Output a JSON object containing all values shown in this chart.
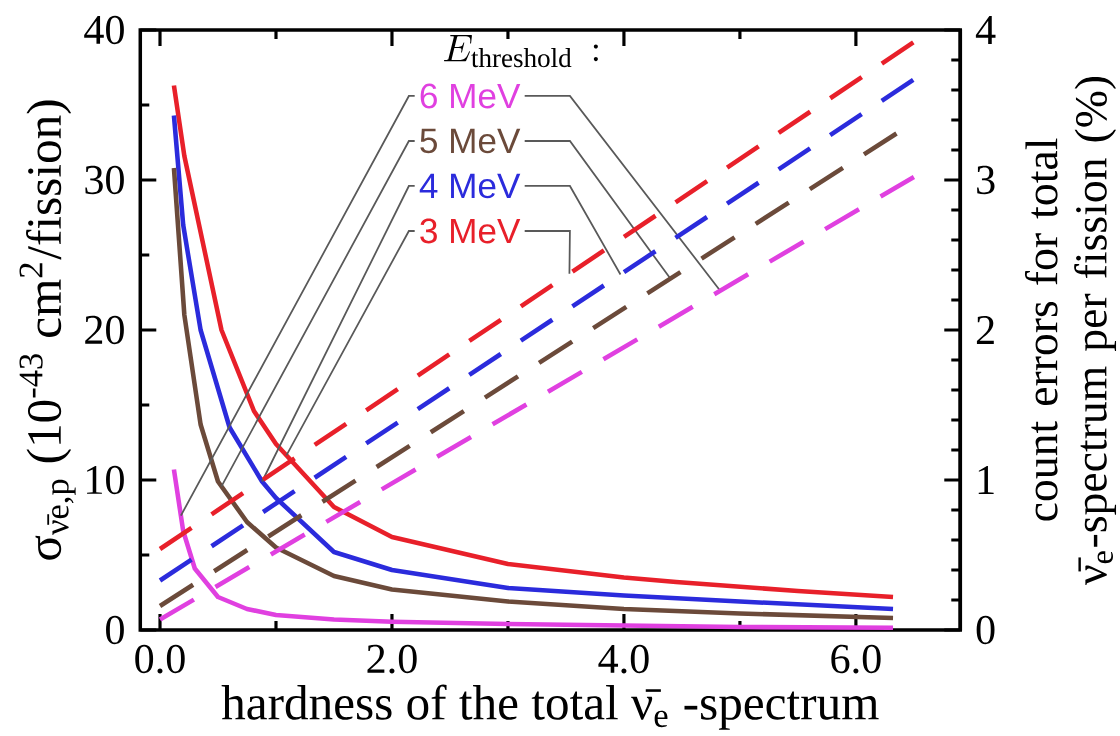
{
  "chart_data": {
    "type": "line",
    "xlabel": "hardness of the total ν̄$_{e}$ -spectrum",
    "ylabel": "σ$_{ν̄e,p}$ (10$^{-43}$ cm$^{2}$/fission)",
    "y2label": "count errors for total ν̄$_{e}$-spectrum per fission (%)",
    "legend_title": "E_{\\mathrm{threshold}}\\,:",
    "legend": "top",
    "xlim": [
      -0.17,
      6.9
    ],
    "ylim": [
      0,
      40
    ],
    "y2lim": [
      0,
      4
    ],
    "xticks": [
      {
        "value": 0,
        "label": "0.0"
      },
      {
        "value": 1,
        "label": null
      },
      {
        "value": 2,
        "label": "2.0"
      },
      {
        "value": 3,
        "label": null
      },
      {
        "value": 4,
        "label": "4.0"
      },
      {
        "value": 5,
        "label": null
      },
      {
        "value": 6,
        "label": "6.0"
      }
    ],
    "yticks": [
      0,
      {
        "value": 5,
        "label": null
      },
      10,
      {
        "value": 15,
        "label": null
      },
      20,
      {
        "value": 25,
        "label": null
      },
      30,
      {
        "value": 35,
        "label": null
      },
      40
    ],
    "y2ticks": [
      0,
      {
        "value": 0.2,
        "label": null
      },
      {
        "value": 0.4,
        "label": null
      },
      {
        "value": 0.6,
        "label": null
      },
      {
        "value": 0.8,
        "label": null
      },
      1,
      {
        "value": 1.2,
        "label": null
      },
      {
        "value": 1.4,
        "label": null
      },
      {
        "value": 1.6,
        "label": null
      },
      {
        "value": 1.8,
        "label": null
      },
      2,
      {
        "value": 2.2,
        "label": null
      },
      {
        "value": 2.4,
        "label": null
      },
      {
        "value": 2.6,
        "label": null
      },
      {
        "value": 2.8,
        "label": null
      },
      3,
      {
        "value": 3.2,
        "label": null
      },
      {
        "value": 3.4,
        "label": null
      },
      {
        "value": 3.6,
        "label": null
      },
      {
        "value": 3.8,
        "label": null
      },
      4
    ],
    "series": [
      {
        "name": "3 MeV",
        "color": "#e8202a",
        "line_style": "solid",
        "x": [
          0.12,
          0.21,
          0.53,
          0.81,
          1.0,
          1.5,
          2.0,
          3.0,
          4.0,
          4.45,
          5.5,
          6.32
        ],
        "values": [
          36.3,
          31.6,
          20,
          14.6,
          12.4,
          8.2,
          6.2,
          4.4,
          3.5,
          3.2,
          2.6,
          2.2
        ]
      },
      {
        "name": "4 MeV",
        "color": "#2b2bdc",
        "line_style": "solid",
        "x": [
          0.12,
          0.2,
          0.35,
          0.6,
          0.88,
          1.0,
          1.5,
          2.0,
          3.0,
          4.0,
          5.0,
          6.32
        ],
        "values": [
          34.3,
          27,
          20,
          13.5,
          9.9,
          8.8,
          5.2,
          4.0,
          2.8,
          2.3,
          1.9,
          1.4
        ]
      },
      {
        "name": "5 MeV",
        "color": "#6b4a3a",
        "line_style": "solid",
        "x": [
          0.12,
          0.21,
          0.35,
          0.5,
          0.75,
          1.0,
          1.5,
          2.0,
          3.0,
          4.0,
          5.0,
          6.32
        ],
        "values": [
          30.8,
          21,
          13.7,
          9.9,
          7.2,
          5.5,
          3.6,
          2.7,
          1.9,
          1.4,
          1.1,
          0.8
        ]
      },
      {
        "name": "6 MeV",
        "color": "#e040e0",
        "line_style": "solid",
        "x": [
          0.12,
          0.2,
          0.3,
          0.5,
          0.75,
          1.0,
          1.5,
          2.0,
          3.0,
          4.0,
          5.0,
          6.32
        ],
        "values": [
          10.7,
          6.6,
          4.1,
          2.2,
          1.4,
          1.0,
          0.7,
          0.55,
          0.4,
          0.3,
          0.2,
          0.15
        ]
      },
      {
        "color": "#e8202a",
        "line_style": "dashed",
        "axis": "y2",
        "x": [
          0,
          6.5
        ],
        "values": [
          0.54,
          3.92
        ]
      },
      {
        "color": "#2b2bdc",
        "line_style": "dashed",
        "axis": "y2",
        "x": [
          0,
          6.5
        ],
        "values": [
          0.33,
          3.67
        ]
      },
      {
        "color": "#6b4a3a",
        "line_style": "dashed",
        "axis": "y2",
        "x": [
          0,
          6.35
        ],
        "values": [
          0.16,
          3.31
        ]
      },
      {
        "color": "#e040e0",
        "line_style": "dashed",
        "axis": "y2",
        "x": [
          0,
          6.5
        ],
        "values": [
          0.07,
          3.02
        ]
      }
    ]
  }
}
